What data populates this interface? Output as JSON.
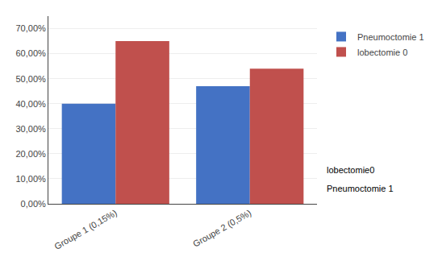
{
  "chart_data": {
    "type": "bar",
    "categories": [
      "Groupe 1 (0,15%)",
      "Groupe 2 (0,5%)"
    ],
    "series": [
      {
        "name": "Pneumoctomie 1",
        "color": "#4472C4",
        "values": [
          0.4,
          0.47
        ]
      },
      {
        "name": "lobectomie 0",
        "color": "#C0504D",
        "values": [
          0.65,
          0.54
        ]
      }
    ],
    "ylim": [
      0,
      0.75
    ],
    "yticks": [
      {
        "value": 0.0,
        "label": "0,00%"
      },
      {
        "value": 0.1,
        "label": "10,00%"
      },
      {
        "value": 0.2,
        "label": "20,00%"
      },
      {
        "value": 0.3,
        "label": "30,00%"
      },
      {
        "value": 0.4,
        "label": "40,00%"
      },
      {
        "value": 0.5,
        "label": "50,00%"
      },
      {
        "value": 0.6,
        "label": "60,00%"
      },
      {
        "value": 0.7,
        "label": "70,00%"
      }
    ],
    "annotations": [
      "lobectomie0",
      "Pneumoctomie 1"
    ],
    "grid": true,
    "legend": "right"
  }
}
